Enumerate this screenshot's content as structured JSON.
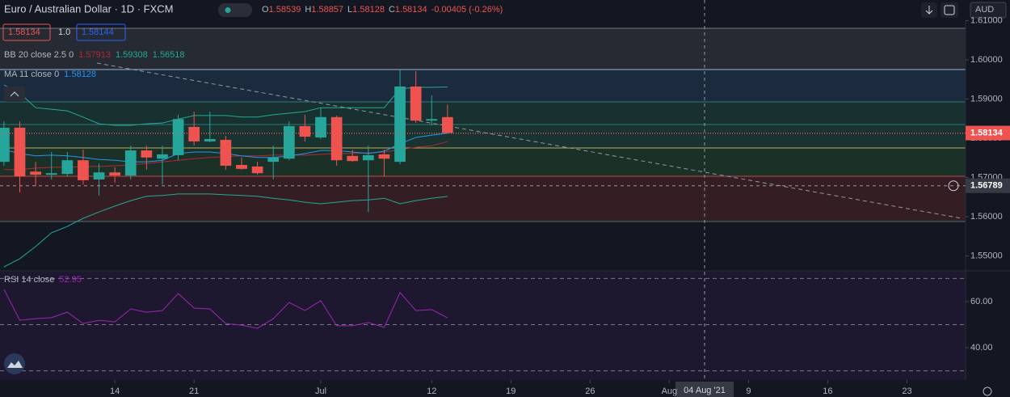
{
  "header": {
    "title": "Euro / Australian Dollar · 1D · FXCM",
    "o": "O",
    "h": "H",
    "l": "L",
    "c": "C",
    "change": "-0.00405 (-0.26%)",
    "bid": "1.58134",
    "spread": "1.0",
    "ask": "1.58144",
    "currency": "AUD"
  },
  "chart_data": {
    "type": "candlestick",
    "up_color": "#26a69a",
    "down_color": "#ef5350",
    "open": [
      1.574,
      1.5827,
      1.5715,
      1.5707,
      1.5709,
      1.5744,
      1.5695,
      1.5713,
      1.5705,
      1.5769,
      1.5748,
      1.5757,
      1.5829,
      1.5792,
      1.5796,
      1.5732,
      1.5728,
      1.574,
      1.5748,
      1.5831,
      1.5802,
      1.5854,
      1.5755,
      1.5744,
      1.5759,
      1.574,
      1.5932,
      1.5845,
      1.58539
    ],
    "high": [
      1.5843,
      1.5843,
      1.574,
      1.5765,
      1.5765,
      1.5771,
      1.5736,
      1.5726,
      1.5781,
      1.5781,
      1.5781,
      1.586,
      1.5868,
      1.5868,
      1.5806,
      1.5751,
      1.574,
      1.5781,
      1.5843,
      1.586,
      1.5878,
      1.5858,
      1.5771,
      1.5781,
      1.5771,
      1.5975,
      1.5971,
      1.5909,
      1.58857
    ],
    "low": [
      1.573,
      1.5662,
      1.5678,
      1.5695,
      1.5703,
      1.5682,
      1.5654,
      1.5687,
      1.5695,
      1.572,
      1.5682,
      1.5744,
      1.5781,
      1.579,
      1.572,
      1.572,
      1.5707,
      1.5695,
      1.5744,
      1.5792,
      1.5798,
      1.573,
      1.574,
      1.5612,
      1.5703,
      1.5734,
      1.5839,
      1.5833,
      1.58128
    ],
    "close": [
      1.5827,
      1.5703,
      1.5707,
      1.5711,
      1.5744,
      1.5693,
      1.5713,
      1.5705,
      1.5769,
      1.5751,
      1.5759,
      1.5849,
      1.5792,
      1.5798,
      1.573,
      1.5722,
      1.5711,
      1.5751,
      1.5831,
      1.5804,
      1.5854,
      1.5744,
      1.5742,
      1.5757,
      1.5748,
      1.5932,
      1.5845,
      1.5849,
      1.58134
    ],
    "xlim": [
      -0.25,
      60.7
    ],
    "xticks": [
      {
        "value": 7,
        "label": "14"
      },
      {
        "value": 12,
        "label": "21"
      },
      {
        "value": 20,
        "label": "Jul"
      },
      {
        "value": 27,
        "label": "12"
      },
      {
        "value": 32,
        "label": "19"
      },
      {
        "value": 37,
        "label": "26"
      },
      {
        "value": 42,
        "label": "Aug"
      },
      {
        "value": 47,
        "label": "9"
      },
      {
        "value": 52,
        "label": "16"
      },
      {
        "value": 57,
        "label": "23"
      }
    ],
    "ylim": [
      1.54619,
      1.61526
    ],
    "yticks": [
      {
        "value": 1.61,
        "label": "1.61000"
      },
      {
        "value": 1.6,
        "label": "1.60000"
      },
      {
        "value": 1.59,
        "label": "1.59000"
      },
      {
        "value": 1.58,
        "label": "1.58000"
      },
      {
        "value": 1.57,
        "label": "1.57000"
      },
      {
        "value": 1.56,
        "label": "1.56000"
      },
      {
        "value": 1.55,
        "label": "1.55000"
      }
    ],
    "bb": {
      "label": "BB 20 close 2.5 0",
      "basis_color": "#b22833",
      "band_color": "#22ab94",
      "basis": [
        1.572,
        1.572,
        1.5724,
        1.5726,
        1.5726,
        1.5728,
        1.5728,
        1.573,
        1.5732,
        1.5736,
        1.574,
        1.5744,
        1.5748,
        1.5751,
        1.5753,
        1.5755,
        1.5755,
        1.5757,
        1.5757,
        1.5757,
        1.5759,
        1.5761,
        1.5761,
        1.5763,
        1.5765,
        1.5771,
        1.5777,
        1.5781,
        1.57913
      ],
      "upper": [
        1.5936,
        1.5915,
        1.5878,
        1.5874,
        1.587,
        1.5854,
        1.5837,
        1.5833,
        1.5833,
        1.5837,
        1.5839,
        1.5849,
        1.5858,
        1.5858,
        1.5858,
        1.5854,
        1.5854,
        1.586,
        1.5864,
        1.5868,
        1.5878,
        1.5878,
        1.5878,
        1.5878,
        1.5878,
        1.5926,
        1.593,
        1.593,
        1.59308
      ],
      "lower": [
        1.5472,
        1.5493,
        1.5524,
        1.5559,
        1.5575,
        1.5596,
        1.5612,
        1.5627,
        1.5641,
        1.5652,
        1.5654,
        1.5658,
        1.5658,
        1.5658,
        1.5656,
        1.5654,
        1.5652,
        1.5647,
        1.5643,
        1.5637,
        1.5633,
        1.5637,
        1.5641,
        1.5643,
        1.5647,
        1.5633,
        1.5641,
        1.5647,
        1.56518
      ]
    },
    "ma": {
      "label": "MA 11 close 0",
      "color": "#2196f3",
      "values": [
        1.5771,
        1.5761,
        1.5755,
        1.5757,
        1.5755,
        1.5751,
        1.5746,
        1.5744,
        1.574,
        1.574,
        1.5744,
        1.5761,
        1.5765,
        1.5765,
        1.5761,
        1.5755,
        1.5751,
        1.5751,
        1.5755,
        1.5761,
        1.5769,
        1.5769,
        1.5765,
        1.5761,
        1.5767,
        1.5786,
        1.5802,
        1.5808,
        1.58128
      ]
    },
    "crosshair": {
      "price": 1.56789,
      "date_label": "04 Aug '21"
    },
    "rsi": {
      "label": "RSI 14 close",
      "color": "#9c27b0",
      "ylim": [
        26,
        73.3
      ],
      "yticks": [
        {
          "value": 60,
          "label": "60.00"
        },
        {
          "value": 40,
          "label": "40.00"
        }
      ],
      "levels": [
        70,
        50,
        30
      ],
      "values": [
        65.3,
        51.9,
        52.6,
        53.0,
        55.4,
        50.5,
        51.9,
        51.2,
        56.8,
        55.4,
        56.1,
        63.5,
        57.2,
        56.8,
        50.5,
        49.8,
        48.4,
        52.6,
        59.6,
        56.1,
        60.4,
        49.5,
        49.5,
        50.9,
        48.8,
        63.9,
        56.1,
        56.5,
        52.95
      ]
    }
  }
}
